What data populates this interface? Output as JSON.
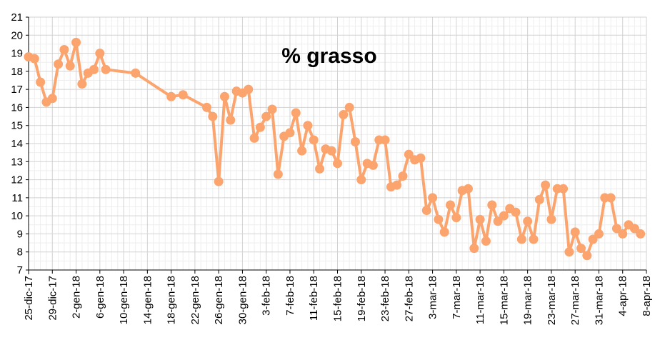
{
  "chart_data": {
    "type": "line",
    "title": "% grasso",
    "xlabel": "",
    "ylabel": "",
    "ylim": [
      7,
      21
    ],
    "y_ticks": [
      "7",
      "8",
      "9",
      "10",
      "11",
      "12",
      "13",
      "14",
      "15",
      "16",
      "17",
      "18",
      "19",
      "20",
      "21"
    ],
    "x_range": [
      "2017-12-25",
      "2018-04-08"
    ],
    "x_tick_labels": [
      "25-dic-17",
      "29-dic-17",
      "2-gen-18",
      "6-gen-18",
      "10-gen-18",
      "14-gen-18",
      "18-gen-18",
      "22-gen-18",
      "26-gen-18",
      "30-gen-18",
      "3-feb-18",
      "7-feb-18",
      "11-feb-18",
      "15-feb-18",
      "19-feb-18",
      "23-feb-18",
      "27-feb-18",
      "3-mar-18",
      "7-mar-18",
      "11-mar-18",
      "15-mar-18",
      "19-mar-18",
      "23-mar-18",
      "27-mar-18",
      "31-mar-18",
      "4-apr-18",
      "8-apr-18"
    ],
    "grid": true,
    "line_color": "#FBA46E",
    "series": [
      {
        "name": "",
        "points": [
          [
            "2017-12-25",
            18.8
          ],
          [
            "2017-12-26",
            18.7
          ],
          [
            "2017-12-27",
            17.4
          ],
          [
            "2017-12-28",
            16.3
          ],
          [
            "2017-12-29",
            16.5
          ],
          [
            "2017-12-30",
            18.4
          ],
          [
            "2017-12-31",
            19.2
          ],
          [
            "2018-01-01",
            18.3
          ],
          [
            "2018-01-02",
            19.6
          ],
          [
            "2018-01-03",
            17.3
          ],
          [
            "2018-01-04",
            17.9
          ],
          [
            "2018-01-05",
            18.1
          ],
          [
            "2018-01-06",
            19.0
          ],
          [
            "2018-01-07",
            18.1
          ],
          [
            "2018-01-12",
            17.9
          ],
          [
            "2018-01-18",
            16.6
          ],
          [
            "2018-01-20",
            16.7
          ],
          [
            "2018-01-24",
            16.0
          ],
          [
            "2018-01-25",
            15.5
          ],
          [
            "2018-01-26",
            11.9
          ],
          [
            "2018-01-27",
            16.6
          ],
          [
            "2018-01-28",
            15.3
          ],
          [
            "2018-01-29",
            16.9
          ],
          [
            "2018-01-30",
            16.8
          ],
          [
            "2018-01-31",
            17.0
          ],
          [
            "2018-02-01",
            14.3
          ],
          [
            "2018-02-02",
            14.9
          ],
          [
            "2018-02-03",
            15.5
          ],
          [
            "2018-02-04",
            15.9
          ],
          [
            "2018-02-05",
            12.3
          ],
          [
            "2018-02-06",
            14.4
          ],
          [
            "2018-02-07",
            14.6
          ],
          [
            "2018-02-08",
            15.7
          ],
          [
            "2018-02-09",
            13.6
          ],
          [
            "2018-02-10",
            15.0
          ],
          [
            "2018-02-11",
            14.2
          ],
          [
            "2018-02-12",
            12.6
          ],
          [
            "2018-02-13",
            13.7
          ],
          [
            "2018-02-14",
            13.6
          ],
          [
            "2018-02-15",
            12.9
          ],
          [
            "2018-02-16",
            15.6
          ],
          [
            "2018-02-17",
            16.0
          ],
          [
            "2018-02-18",
            14.1
          ],
          [
            "2018-02-19",
            12.0
          ],
          [
            "2018-02-20",
            12.9
          ],
          [
            "2018-02-21",
            12.8
          ],
          [
            "2018-02-22",
            14.2
          ],
          [
            "2018-02-23",
            14.2
          ],
          [
            "2018-02-24",
            11.6
          ],
          [
            "2018-02-25",
            11.7
          ],
          [
            "2018-02-26",
            12.2
          ],
          [
            "2018-02-27",
            13.4
          ],
          [
            "2018-02-28",
            13.1
          ],
          [
            "2018-03-01",
            13.2
          ],
          [
            "2018-03-02",
            10.3
          ],
          [
            "2018-03-03",
            11.0
          ],
          [
            "2018-03-04",
            9.8
          ],
          [
            "2018-03-05",
            9.1
          ],
          [
            "2018-03-06",
            10.6
          ],
          [
            "2018-03-07",
            9.9
          ],
          [
            "2018-03-08",
            11.4
          ],
          [
            "2018-03-09",
            11.5
          ],
          [
            "2018-03-10",
            8.2
          ],
          [
            "2018-03-11",
            9.8
          ],
          [
            "2018-03-12",
            8.6
          ],
          [
            "2018-03-13",
            10.6
          ],
          [
            "2018-03-14",
            9.7
          ],
          [
            "2018-03-15",
            10.0
          ],
          [
            "2018-03-16",
            10.4
          ],
          [
            "2018-03-17",
            10.2
          ],
          [
            "2018-03-18",
            8.7
          ],
          [
            "2018-03-19",
            9.7
          ],
          [
            "2018-03-20",
            8.7
          ],
          [
            "2018-03-21",
            10.9
          ],
          [
            "2018-03-22",
            11.7
          ],
          [
            "2018-03-23",
            9.8
          ],
          [
            "2018-03-24",
            11.5
          ],
          [
            "2018-03-25",
            11.5
          ],
          [
            "2018-03-26",
            8.0
          ],
          [
            "2018-03-27",
            9.1
          ],
          [
            "2018-03-28",
            8.2
          ],
          [
            "2018-03-29",
            7.8
          ],
          [
            "2018-03-30",
            8.7
          ],
          [
            "2018-03-31",
            9.0
          ],
          [
            "2018-04-01",
            11.0
          ],
          [
            "2018-04-02",
            11.0
          ],
          [
            "2018-04-03",
            9.3
          ],
          [
            "2018-04-04",
            9.0
          ],
          [
            "2018-04-05",
            9.5
          ],
          [
            "2018-04-06",
            9.3
          ],
          [
            "2018-04-07",
            9.0
          ]
        ]
      }
    ]
  }
}
